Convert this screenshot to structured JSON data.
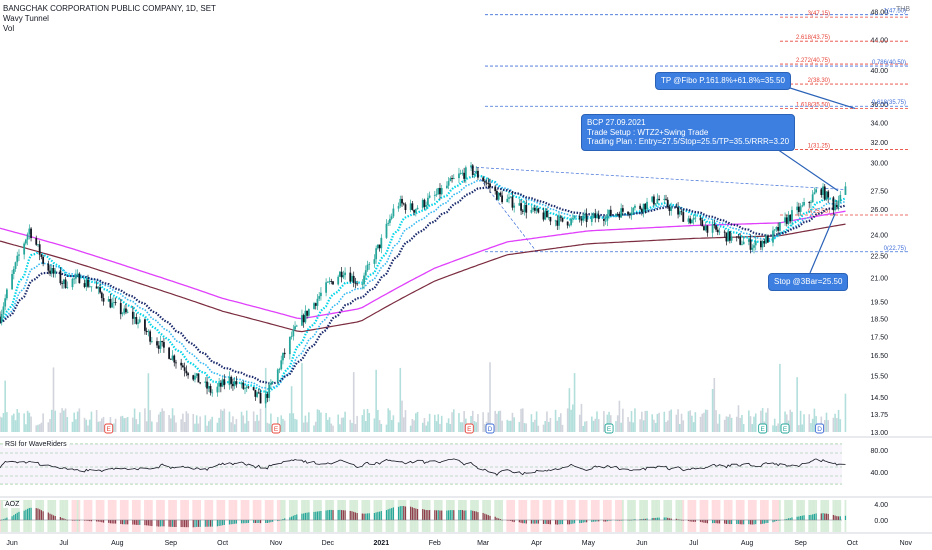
{
  "header": {
    "title": "BANGCHAK CORPORATION PUBLIC COMPANY, 1D, SET",
    "indicators": [
      "Wavy Tunnel",
      "Vol"
    ],
    "currency": "THB"
  },
  "annotations": {
    "tp": "TP @Fibo P.161.8%+61.8%=35.50",
    "plan_lines": [
      "BCP 27.09.2021",
      "Trade Setup : WTZ2+Swing Trade",
      "Trading Plan : Entry=27.5/Stop=25.5/TP=35.5/RRR=3.20"
    ],
    "stop": "Stop @3Bar=25.50"
  },
  "fib_labels": [
    {
      "text": "1(47.50)",
      "price": 47.5,
      "side": "right",
      "color": "#3f6fd8"
    },
    {
      "text": "3(47.15)",
      "price": 47.15,
      "side": "left",
      "color": "#e8443a"
    },
    {
      "text": "2.618(43.75)",
      "price": 43.75,
      "side": "left",
      "color": "#e8443a"
    },
    {
      "text": "2.272(40.75)",
      "price": 40.75,
      "side": "left",
      "color": "#e8443a"
    },
    {
      "text": "0.786(40.50)",
      "price": 40.5,
      "side": "right",
      "color": "#3f6fd8"
    },
    {
      "text": "2(38.30)",
      "price": 38.3,
      "side": "left",
      "color": "#e8443a"
    },
    {
      "text": "1.618(35.50)",
      "price": 35.5,
      "side": "left",
      "color": "#e8443a"
    },
    {
      "text": "0.618(35.75)",
      "price": 35.75,
      "side": "right",
      "color": "#3f6fd8"
    },
    {
      "text": "1(31.25)",
      "price": 31.25,
      "side": "left",
      "color": "#e8443a"
    },
    {
      "text": "0(25.50)",
      "price": 25.5,
      "side": "left",
      "color": "#e8443a"
    },
    {
      "text": "0(22.75)",
      "price": 22.75,
      "side": "right",
      "color": "#3f6fd8"
    }
  ],
  "event_markers": [
    {
      "label": "E",
      "x": "2020-07-27",
      "color": "#e8443a"
    },
    {
      "label": "E",
      "x": "2020-11-01",
      "color": "#e8443a"
    },
    {
      "label": "E",
      "x": "2021-02-21",
      "color": "#e8443a"
    },
    {
      "label": "D",
      "x": "2021-03-05",
      "color": "#3f6fd8"
    },
    {
      "label": "E",
      "x": "2021-05-13",
      "color": "#26a69a"
    },
    {
      "label": "E",
      "x": "2021-08-10",
      "color": "#26a69a"
    },
    {
      "label": "E",
      "x": "2021-08-23",
      "color": "#26a69a"
    },
    {
      "label": "D",
      "x": "2021-09-12",
      "color": "#3f6fd8"
    }
  ],
  "rsi": {
    "title": "RSI for WaveRiders",
    "ticks": [
      "80.00",
      "40.00"
    ]
  },
  "aoz": {
    "title": "AOZ",
    "ticks": [
      "4.00",
      "0.00"
    ]
  },
  "colors": {
    "up": "#26a69a",
    "down": "#131722",
    "tunnel_cyan": "#00d5e8",
    "tunnel_navy": "#1a2a6c",
    "ma_magenta": "#e040fb",
    "ma_brown": "#7b2c3f",
    "fib_red": "#e8443a",
    "fib_blue": "#3f6fd8"
  },
  "chart_data": {
    "type": "candlestick",
    "x_axis": {
      "type": "date",
      "range": [
        "2020-05-25",
        "2021-11-15"
      ],
      "tick_labels": [
        "Jun",
        "Jul",
        "Aug",
        "Sep",
        "Oct",
        "Nov",
        "Dec",
        "2021",
        "Feb",
        "Mar",
        "Apr",
        "May",
        "Jun",
        "Jul",
        "Aug",
        "Sep",
        "Oct",
        "Nov"
      ]
    },
    "y_axis": {
      "scale": "log",
      "range": [
        13.0,
        48.5
      ],
      "tick_labels": [
        "13.00",
        "13.75",
        "14.50",
        "15.50",
        "16.50",
        "17.50",
        "18.50",
        "19.50",
        "21.00",
        "22.50",
        "24.00",
        "26.00",
        "27.50",
        "30.00",
        "32.00",
        "34.00",
        "36.00",
        "40.00",
        "44.00",
        "48.00"
      ]
    },
    "price_path": [
      [
        "2020-05-25",
        18.6
      ],
      [
        "2020-06-05",
        22.5
      ],
      [
        "2020-06-11",
        24.4
      ],
      [
        "2020-06-20",
        21.8
      ],
      [
        "2020-07-01",
        20.6
      ],
      [
        "2020-07-10",
        21.0
      ],
      [
        "2020-07-20",
        20.2
      ],
      [
        "2020-08-01",
        19.0
      ],
      [
        "2020-08-10",
        18.6
      ],
      [
        "2020-08-20",
        17.5
      ],
      [
        "2020-09-01",
        16.5
      ],
      [
        "2020-09-15",
        15.4
      ],
      [
        "2020-09-25",
        14.7
      ],
      [
        "2020-10-05",
        15.3
      ],
      [
        "2020-10-15",
        14.8
      ],
      [
        "2020-10-25",
        14.3
      ],
      [
        "2020-11-01",
        15.5
      ],
      [
        "2020-11-10",
        17.5
      ],
      [
        "2020-11-20",
        19.0
      ],
      [
        "2020-12-01",
        20.5
      ],
      [
        "2020-12-10",
        21.5
      ],
      [
        "2020-12-20",
        20.5
      ],
      [
        "2021-01-01",
        23.5
      ],
      [
        "2021-01-10",
        26.5
      ],
      [
        "2021-01-20",
        26.0
      ],
      [
        "2021-02-01",
        27.0
      ],
      [
        "2021-02-15",
        28.8
      ],
      [
        "2021-02-22",
        29.3
      ],
      [
        "2021-03-01",
        28.5
      ],
      [
        "2021-03-10",
        27.0
      ],
      [
        "2021-03-20",
        26.4
      ],
      [
        "2021-04-01",
        25.6
      ],
      [
        "2021-04-15",
        25.0
      ],
      [
        "2021-05-01",
        25.2
      ],
      [
        "2021-05-15",
        25.6
      ],
      [
        "2021-06-01",
        26.2
      ],
      [
        "2021-06-10",
        26.8
      ],
      [
        "2021-06-25",
        25.4
      ],
      [
        "2021-07-10",
        24.5
      ],
      [
        "2021-07-25",
        23.6
      ],
      [
        "2021-08-05",
        23.2
      ],
      [
        "2021-08-15",
        23.8
      ],
      [
        "2021-08-25",
        25.3
      ],
      [
        "2021-09-05",
        26.4
      ],
      [
        "2021-09-12",
        27.8
      ],
      [
        "2021-09-20",
        26.2
      ],
      [
        "2021-09-27",
        27.5
      ]
    ],
    "ma_slow_path": [
      [
        "2020-05-25",
        24.0
      ],
      [
        "2020-07-01",
        22.7
      ],
      [
        "2020-08-15",
        21.0
      ],
      [
        "2020-10-01",
        19.3
      ],
      [
        "2020-11-15",
        18.1
      ],
      [
        "2020-12-20",
        18.7
      ],
      [
        "2021-02-01",
        21.2
      ],
      [
        "2021-03-15",
        23.0
      ],
      [
        "2021-05-01",
        23.8
      ],
      [
        "2021-07-01",
        24.2
      ],
      [
        "2021-08-20",
        24.4
      ],
      [
        "2021-09-27",
        25.3
      ]
    ],
    "last_price": 27.5
  }
}
